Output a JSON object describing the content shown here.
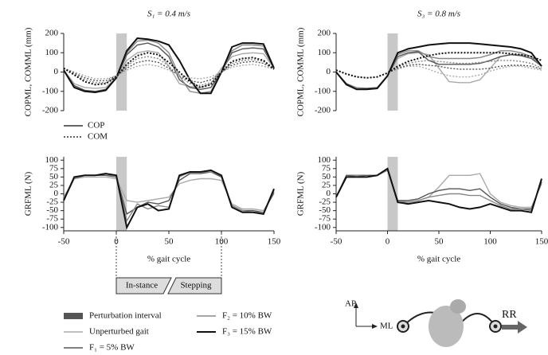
{
  "chart_data": [
    {
      "type": "line",
      "title": "S₁ = 0.4 m/s",
      "ylabel": "COPML, COMML (mm)",
      "x": [
        -50,
        -40,
        -30,
        -20,
        -10,
        0,
        10,
        20,
        30,
        40,
        50,
        60,
        70,
        80,
        90,
        100,
        110,
        120,
        130,
        140,
        150
      ],
      "xlim": [
        -50,
        150
      ],
      "ylim": [
        -200,
        200
      ],
      "yticks": [
        -200,
        -100,
        0,
        100,
        200
      ],
      "shade": [
        0,
        10
      ],
      "series": [
        {
          "color": "#aaaaaa",
          "dash": false,
          "values": [
            10,
            -60,
            -80,
            -85,
            -80,
            -30,
            60,
            100,
            110,
            100,
            30,
            -60,
            -75,
            -80,
            -60,
            20,
            80,
            95,
            100,
            95,
            20
          ]
        },
        {
          "color": "#555555",
          "dash": false,
          "values": [
            10,
            -70,
            -95,
            -100,
            -90,
            -30,
            90,
            140,
            150,
            130,
            80,
            -40,
            -80,
            -90,
            -80,
            0,
            100,
            120,
            125,
            120,
            20
          ]
        },
        {
          "color": "#888888",
          "dash": false,
          "values": [
            10,
            -75,
            -100,
            -105,
            -95,
            -30,
            100,
            160,
            165,
            150,
            100,
            -20,
            -100,
            -110,
            -100,
            0,
            110,
            140,
            140,
            135,
            20
          ]
        },
        {
          "color": "#111111",
          "dash": false,
          "values": [
            10,
            -80,
            -100,
            -105,
            -95,
            -30,
            110,
            175,
            170,
            160,
            140,
            60,
            -40,
            -110,
            -110,
            0,
            130,
            150,
            150,
            145,
            20
          ]
        },
        {
          "color": "#aaaaaa",
          "dash": true,
          "values": [
            20,
            0,
            -20,
            -35,
            -35,
            -20,
            10,
            30,
            40,
            30,
            10,
            -15,
            -30,
            -35,
            -25,
            0,
            25,
            35,
            40,
            30,
            15
          ]
        },
        {
          "color": "#555555",
          "dash": true,
          "values": [
            20,
            -5,
            -30,
            -45,
            -45,
            -20,
            20,
            50,
            60,
            50,
            20,
            -20,
            -45,
            -55,
            -40,
            0,
            35,
            50,
            55,
            45,
            15
          ]
        },
        {
          "color": "#888888",
          "dash": true,
          "values": [
            20,
            -10,
            -40,
            -55,
            -55,
            -25,
            30,
            70,
            80,
            70,
            30,
            -20,
            -60,
            -70,
            -55,
            0,
            45,
            60,
            65,
            55,
            15
          ]
        },
        {
          "color": "#111111",
          "dash": true,
          "values": [
            20,
            -15,
            -50,
            -65,
            -60,
            -25,
            40,
            85,
            100,
            90,
            50,
            0,
            -50,
            -80,
            -65,
            0,
            55,
            70,
            75,
            60,
            15
          ]
        }
      ]
    },
    {
      "type": "line",
      "title": "S₃ = 0.8 m/s",
      "ylabel": "COPML, COMML (mm)",
      "x": [
        -50,
        -40,
        -30,
        -20,
        -10,
        0,
        10,
        20,
        30,
        40,
        50,
        60,
        70,
        80,
        90,
        100,
        110,
        120,
        130,
        140,
        150
      ],
      "xlim": [
        -50,
        150
      ],
      "ylim": [
        -200,
        200
      ],
      "yticks": [
        -200,
        -100,
        0,
        100,
        200
      ],
      "shade": [
        0,
        10
      ],
      "series": [
        {
          "color": "#aaaaaa",
          "dash": false,
          "values": [
            0,
            -60,
            -80,
            -85,
            -80,
            -20,
            70,
            95,
            100,
            90,
            20,
            -50,
            -55,
            -55,
            -40,
            20,
            80,
            90,
            90,
            80,
            30
          ]
        },
        {
          "color": "#555555",
          "dash": false,
          "values": [
            0,
            -60,
            -85,
            -85,
            -80,
            -20,
            80,
            100,
            105,
            60,
            40,
            40,
            40,
            40,
            45,
            60,
            80,
            90,
            85,
            70,
            30
          ]
        },
        {
          "color": "#888888",
          "dash": false,
          "values": [
            0,
            -65,
            -85,
            -90,
            -80,
            -20,
            90,
            110,
            110,
            80,
            70,
            70,
            70,
            70,
            75,
            90,
            110,
            110,
            100,
            80,
            30
          ]
        },
        {
          "color": "#111111",
          "dash": false,
          "values": [
            0,
            -65,
            -90,
            -90,
            -85,
            -20,
            100,
            120,
            130,
            140,
            145,
            150,
            150,
            150,
            145,
            140,
            135,
            130,
            120,
            100,
            30
          ]
        },
        {
          "color": "#aaaaaa",
          "dash": true,
          "values": [
            10,
            -10,
            -25,
            -30,
            -25,
            -5,
            15,
            30,
            30,
            15,
            -5,
            -20,
            -25,
            -25,
            -15,
            5,
            20,
            30,
            30,
            20,
            10
          ]
        },
        {
          "color": "#555555",
          "dash": true,
          "values": [
            10,
            -10,
            -25,
            -30,
            -25,
            -5,
            20,
            35,
            40,
            35,
            30,
            20,
            15,
            15,
            15,
            20,
            30,
            35,
            35,
            30,
            15
          ]
        },
        {
          "color": "#888888",
          "dash": true,
          "values": [
            10,
            -10,
            -25,
            -30,
            -25,
            -5,
            25,
            45,
            55,
            60,
            55,
            50,
            45,
            45,
            50,
            55,
            60,
            60,
            55,
            45,
            20
          ]
        },
        {
          "color": "#111111",
          "dash": true,
          "values": [
            10,
            -10,
            -25,
            -30,
            -25,
            -5,
            30,
            55,
            70,
            85,
            95,
            100,
            100,
            100,
            100,
            100,
            100,
            95,
            90,
            80,
            60
          ]
        }
      ]
    },
    {
      "type": "line",
      "ylabel": "GRFML (N)",
      "xlabel": "% gait cycle",
      "x": [
        -50,
        -40,
        -30,
        -20,
        -10,
        0,
        10,
        20,
        30,
        40,
        50,
        60,
        70,
        80,
        90,
        100,
        110,
        120,
        130,
        140,
        150
      ],
      "xlim": [
        -50,
        150
      ],
      "xticks": [
        -50,
        0,
        50,
        100,
        150
      ],
      "ylim": [
        -110,
        110
      ],
      "yticks": [
        -100,
        -75,
        -50,
        -25,
        0,
        25,
        50,
        75,
        100
      ],
      "shade": [
        0,
        10
      ],
      "series": [
        {
          "color": "#aaaaaa",
          "dash": false,
          "values": [
            -10,
            45,
            50,
            50,
            50,
            45,
            -20,
            -25,
            -20,
            -15,
            -10,
            30,
            40,
            45,
            45,
            40,
            -30,
            -45,
            -45,
            -50,
            0
          ]
        },
        {
          "color": "#555555",
          "dash": false,
          "values": [
            -15,
            45,
            55,
            55,
            55,
            50,
            -60,
            -40,
            -25,
            -30,
            -20,
            40,
            60,
            60,
            65,
            50,
            -35,
            -50,
            -50,
            -55,
            5
          ]
        },
        {
          "color": "#888888",
          "dash": false,
          "values": [
            -20,
            45,
            55,
            55,
            60,
            50,
            -80,
            -30,
            -45,
            -35,
            -40,
            50,
            65,
            65,
            65,
            55,
            -35,
            -50,
            -55,
            -55,
            10
          ]
        },
        {
          "color": "#111111",
          "dash": false,
          "values": [
            -20,
            50,
            55,
            55,
            60,
            55,
            -100,
            -40,
            -30,
            -50,
            -45,
            55,
            65,
            65,
            70,
            55,
            -40,
            -55,
            -55,
            -60,
            15
          ]
        }
      ]
    },
    {
      "type": "line",
      "ylabel": "GRFML (N)",
      "xlabel": "% gait cycle",
      "x": [
        -50,
        -40,
        -30,
        -20,
        -10,
        0,
        10,
        20,
        30,
        40,
        50,
        60,
        70,
        80,
        90,
        100,
        110,
        120,
        130,
        140,
        150
      ],
      "xlim": [
        -50,
        150
      ],
      "xticks": [
        -50,
        0,
        50,
        100,
        150
      ],
      "ylim": [
        -110,
        110
      ],
      "yticks": [
        -100,
        -75,
        -50,
        -25,
        0,
        25,
        50,
        75,
        100
      ],
      "shade": [
        0,
        10
      ],
      "series": [
        {
          "color": "#aaaaaa",
          "dash": false,
          "values": [
            -10,
            55,
            55,
            55,
            55,
            70,
            -20,
            -25,
            -20,
            -10,
            20,
            55,
            55,
            55,
            60,
            0,
            -25,
            -35,
            -40,
            -40,
            30
          ]
        },
        {
          "color": "#555555",
          "dash": false,
          "values": [
            -10,
            55,
            55,
            55,
            55,
            70,
            -20,
            -20,
            -15,
            0,
            10,
            15,
            15,
            10,
            15,
            -10,
            -30,
            -40,
            -45,
            -45,
            35
          ]
        },
        {
          "color": "#888888",
          "dash": false,
          "values": [
            -10,
            50,
            55,
            50,
            55,
            70,
            -25,
            -25,
            -20,
            -10,
            -5,
            0,
            0,
            -5,
            -5,
            -20,
            -35,
            -45,
            -45,
            -50,
            40
          ]
        },
        {
          "color": "#111111",
          "dash": false,
          "values": [
            -10,
            50,
            50,
            50,
            55,
            75,
            -25,
            -30,
            -25,
            -20,
            -25,
            -30,
            -40,
            -45,
            -40,
            -30,
            -40,
            -50,
            -50,
            -55,
            45
          ]
        }
      ]
    }
  ],
  "line_legend": [
    {
      "label": "COP",
      "dash": false
    },
    {
      "label": "COM",
      "dash": true
    }
  ],
  "legend": [
    {
      "label": "Perturbation interval",
      "color": "#555555"
    },
    {
      "label": "Unperturbed gait",
      "color": "#aaaaaa"
    },
    {
      "label": "F₁ = 5% BW",
      "color": "#555555"
    },
    {
      "label": "F₂ = 10% BW",
      "color": "#888888"
    },
    {
      "label": "F₃ = 15% BW",
      "color": "#111111"
    }
  ],
  "phases": [
    "In-stance",
    "Stepping"
  ],
  "diagram": {
    "ap": "AP",
    "ml": "ML",
    "rr": "RR"
  }
}
